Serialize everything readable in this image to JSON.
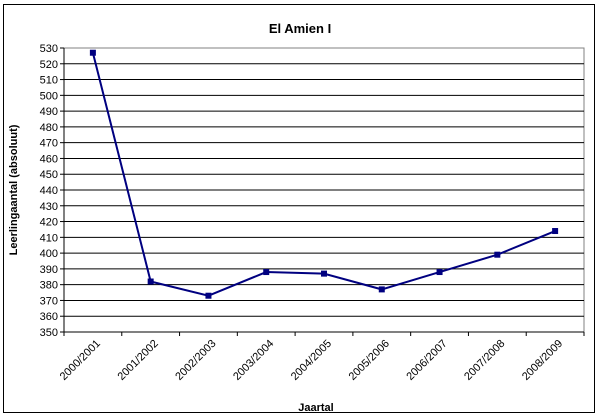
{
  "chart_data": {
    "type": "line",
    "title": "El Amien I",
    "xlabel": "Jaartal",
    "ylabel": "Leerlingaantal (absoluut)",
    "categories": [
      "2000/2001",
      "2001/2002",
      "2002/2003",
      "2003/2004",
      "2004/2005",
      "2005/2006",
      "2006/2007",
      "2007/2008",
      "2008/2009"
    ],
    "series": [
      {
        "values": [
          527,
          382,
          373,
          388,
          387,
          377,
          388,
          399,
          414
        ],
        "color": "#000080"
      }
    ],
    "ylim": [
      350,
      530
    ],
    "ytick_step": 10,
    "grid": true,
    "legend": "none"
  }
}
